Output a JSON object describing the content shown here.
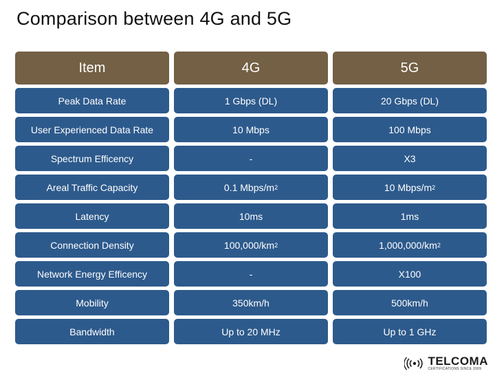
{
  "title": "Comparison between 4G and 5G",
  "headers": [
    "Item",
    "4G",
    "5G"
  ],
  "rows": [
    {
      "item": "Peak Data Rate",
      "g4": "1 Gbps (DL)",
      "g5": "20 Gbps (DL)"
    },
    {
      "item": "User Experienced Data Rate",
      "g4": "10 Mbps",
      "g5": "100 Mbps"
    },
    {
      "item": "Spectrum Efficency",
      "g4": "-",
      "g5": "X3"
    },
    {
      "item": "Areal Traffic Capacity",
      "g4": "0.1 Mbps/m",
      "g4_sup": "2",
      "g5": "10 Mbps/m",
      "g5_sup": "2"
    },
    {
      "item": "Latency",
      "g4": "10ms",
      "g5": "1ms"
    },
    {
      "item": "Connection Density",
      "g4": "100,000/km",
      "g4_sup": "2",
      "g5": "1,000,000/km",
      "g5_sup": "2"
    },
    {
      "item": "Network Energy Efficency",
      "g4": "-",
      "g5": "X100"
    },
    {
      "item": "Mobility",
      "g4": "350km/h",
      "g5": "500km/h"
    },
    {
      "item": "Bandwidth",
      "g4": "Up to 20 MHz",
      "g5": "Up to 1 GHz"
    }
  ],
  "logo": {
    "name": "TELCOMA",
    "tagline": "CERTIFICATIONS SINCE 2009",
    "icon": "signal-waves-icon"
  },
  "colors": {
    "header_bg": "#736045",
    "row_bg": "#2d5a8c",
    "text": "#ffffff"
  }
}
